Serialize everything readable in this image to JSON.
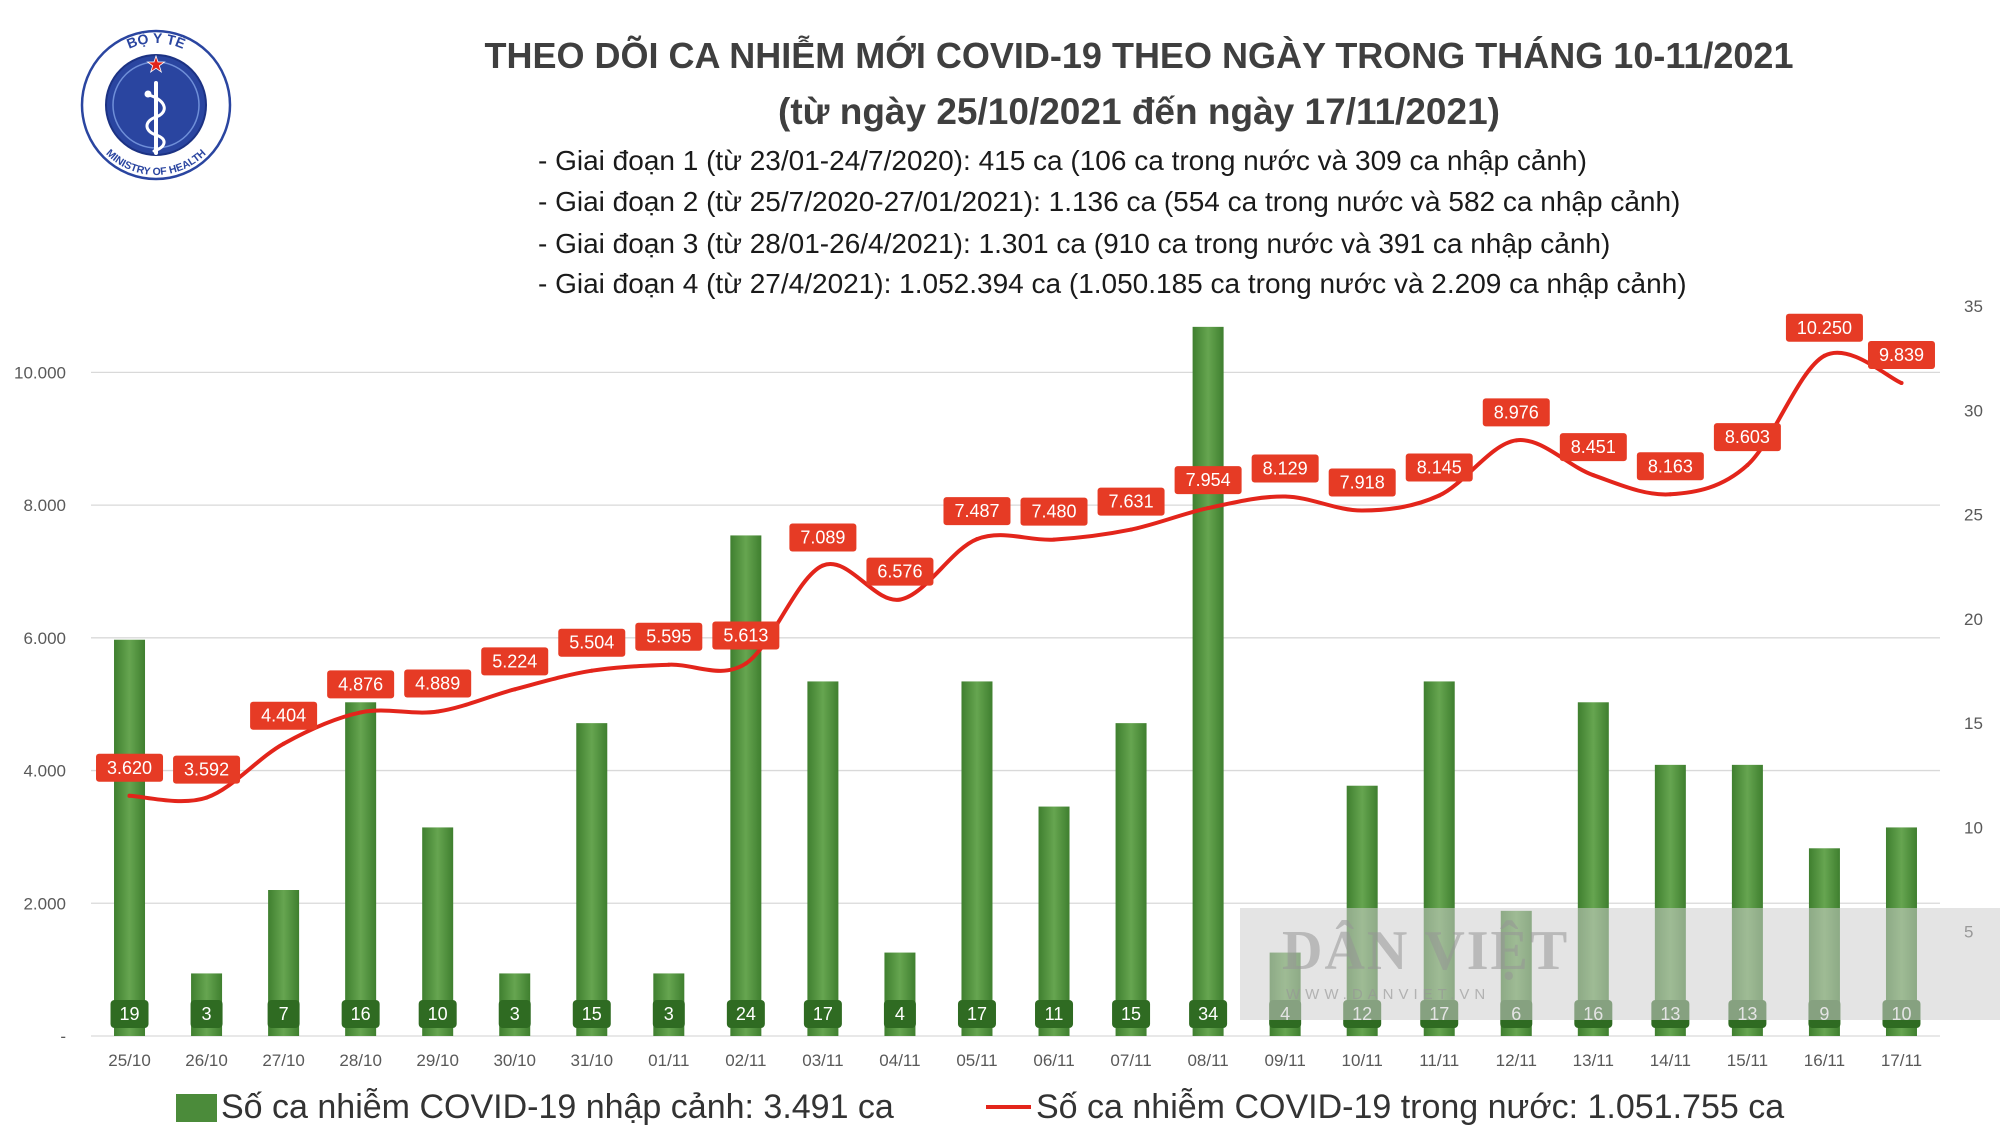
{
  "logo": {
    "top_text": "BỘ Y TẾ",
    "bottom_text": "MINISTRY OF HEALTH",
    "icon": "caduceus-emblem"
  },
  "watermark": {
    "brand": "DÂN VIỆT",
    "url": "WWW.DANVIET.VN"
  },
  "colors": {
    "title": "#3f3f3f",
    "bar": "#4b8b3a",
    "bar_light": "#66a550",
    "bar_label_bg": "#2f6b22",
    "line": "#e3251b",
    "line_label_bg": "#e63b25",
    "grid": "#d9d9d9",
    "axis_text": "#595959",
    "logo_blue": "#2a45a0",
    "logo_star": "#e2231a"
  },
  "chart_data": {
    "type": "bar",
    "title": "THEO DÕI CA NHIỄM MỚI COVID-19 THEO NGÀY TRONG THÁNG 10-11/2021",
    "subtitle": "(từ ngày 25/10/2021 đến ngày 17/11/2021)",
    "annotations": [
      "- Giai đoạn 1 (từ 23/01-24/7/2020): 415 ca (106 ca trong nước và 309 ca nhập cảnh)",
      "- Giai đoạn 2 (từ 25/7/2020-27/01/2021): 1.136 ca (554 ca trong nước và 582 ca nhập cảnh)",
      "- Giai đoạn 3 (từ 28/01-26/4/2021): 1.301 ca (910 ca trong nước và 391 ca nhập cảnh)",
      "- Giai đoạn 4 (từ 27/4/2021): 1.052.394 ca (1.050.185 ca trong nước và 2.209 ca nhập cảnh)"
    ],
    "xlabel": "",
    "ylabel": "",
    "categories": [
      "25/10",
      "26/10",
      "27/10",
      "28/10",
      "29/10",
      "30/10",
      "31/10",
      "01/11",
      "02/11",
      "03/11",
      "04/11",
      "05/11",
      "06/11",
      "07/11",
      "08/11",
      "09/11",
      "10/11",
      "11/11",
      "12/11",
      "13/11",
      "14/11",
      "15/11",
      "16/11",
      "17/11"
    ],
    "series": [
      {
        "name": "Số ca nhiễm COVID-19 nhập cảnh: 3.491 ca",
        "type": "bar",
        "axis": "right",
        "values": [
          19,
          3,
          7,
          16,
          10,
          3,
          15,
          3,
          24,
          17,
          4,
          17,
          11,
          15,
          34,
          4,
          12,
          17,
          6,
          16,
          13,
          13,
          9,
          10
        ]
      },
      {
        "name": "Số ca nhiễm COVID-19 trong nước: 1.051.755 ca",
        "type": "line",
        "axis": "left",
        "values": [
          3620,
          3592,
          4404,
          4876,
          4889,
          5224,
          5504,
          5595,
          5613,
          7089,
          6576,
          7487,
          7480,
          7631,
          7954,
          8129,
          7918,
          8145,
          8976,
          8451,
          8163,
          8603,
          10250,
          9839
        ]
      }
    ],
    "y_left": {
      "range": [
        0,
        11000
      ],
      "ticks": [
        {
          "value": 0,
          "label": "-"
        },
        {
          "value": 2000,
          "label": "2.000"
        },
        {
          "value": 4000,
          "label": "4.000"
        },
        {
          "value": 6000,
          "label": "6.000"
        },
        {
          "value": 8000,
          "label": "8.000"
        },
        {
          "value": 10000,
          "label": "10.000"
        }
      ]
    },
    "y_right": {
      "range": [
        0,
        35
      ],
      "ticks": [
        {
          "value": 5,
          "label": "5"
        },
        {
          "value": 10,
          "label": "10"
        },
        {
          "value": 15,
          "label": "15"
        },
        {
          "value": 20,
          "label": "20"
        },
        {
          "value": 25,
          "label": "25"
        },
        {
          "value": 30,
          "label": "30"
        },
        {
          "value": 35,
          "label": "35"
        }
      ]
    },
    "grid": true,
    "legend": "bottom",
    "data_labels": true
  }
}
